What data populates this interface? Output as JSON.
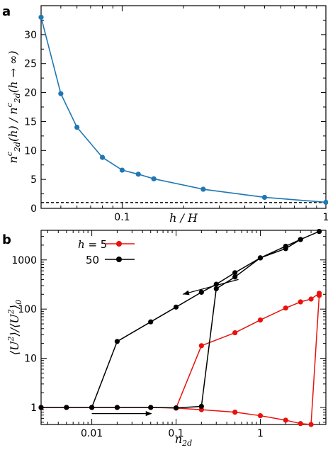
{
  "chart_data": [
    {
      "panel": "a",
      "type": "line",
      "xscale": "log",
      "xlim": [
        0.04,
        1
      ],
      "ylim": [
        0,
        35
      ],
      "xlabel": "h / H",
      "ylabel": "n^c_2d(h) / n^c_2d(h → ∞)",
      "xticks": [
        {
          "value": 0.1,
          "label": "0.1"
        },
        {
          "value": 1,
          "label": "1"
        }
      ],
      "yticks": [
        0,
        5,
        10,
        15,
        20,
        25,
        30
      ],
      "yticklabels": [
        "0",
        "5",
        "10",
        "15",
        "20",
        "25",
        "30"
      ],
      "reference_line": {
        "y": 1,
        "style": "dashed",
        "color": "#000000"
      },
      "series": [
        {
          "color": "#1f77b4",
          "x": [
            0.04,
            0.05,
            0.06,
            0.08,
            0.1,
            0.12,
            0.143,
            0.25,
            0.5,
            1.0
          ],
          "y": [
            33.0,
            19.8,
            14.0,
            8.8,
            6.6,
            5.9,
            5.1,
            3.3,
            1.9,
            1.05
          ]
        }
      ]
    },
    {
      "panel": "b",
      "type": "line",
      "xscale": "log",
      "yscale": "log",
      "xlim": [
        0.0025,
        6
      ],
      "ylim": [
        0.45,
        4000
      ],
      "xlabel": "n_2d",
      "ylabel": "⟨U²⟩/⟨U²⟩₀",
      "xticks": [
        {
          "value": 0.01,
          "label": "0.01"
        },
        {
          "value": 0.1,
          "label": "0.1"
        },
        {
          "value": 1,
          "label": "1"
        }
      ],
      "yticks": [
        {
          "value": 1,
          "label": "1"
        },
        {
          "value": 10,
          "label": "10"
        },
        {
          "value": 100,
          "label": "100"
        },
        {
          "value": 1000,
          "label": "1000"
        }
      ],
      "legend": {
        "position": "top-left",
        "title": "h = 5",
        "entries": [
          "5",
          "50"
        ]
      },
      "series": [
        {
          "name": "5",
          "color": "#e8120c",
          "x": [
            0.0025,
            0.005,
            0.01,
            0.02,
            0.05,
            0.1,
            0.2,
            0.5,
            1,
            2,
            3,
            4,
            5,
            5,
            4,
            3,
            2,
            1,
            0.5,
            0.2,
            0.1
          ],
          "y": [
            1.0,
            1.0,
            1.0,
            1.0,
            1.0,
            0.97,
            0.9,
            0.8,
            0.68,
            0.55,
            0.47,
            0.45,
            190,
            210,
            160,
            140,
            105,
            60,
            33,
            18,
            0.97
          ]
        },
        {
          "name": "50",
          "color": "#000000",
          "x": [
            0.0025,
            0.005,
            0.01,
            0.02,
            0.05,
            0.1,
            0.2,
            0.3,
            0.5,
            1,
            2,
            3,
            5,
            5,
            3,
            2,
            1,
            0.5,
            0.3,
            0.2,
            0.1,
            0.05,
            0.02,
            0.01
          ],
          "y": [
            1.0,
            1.0,
            1.0,
            1.0,
            1.0,
            0.98,
            1.05,
            260,
            450,
            1100,
            1700,
            2600,
            3800,
            3800,
            2600,
            1900,
            1100,
            550,
            320,
            220,
            110,
            55,
            22,
            1.0
          ]
        }
      ],
      "annotations": [
        {
          "type": "arrow",
          "direction": "left",
          "x0": 0.55,
          "x1": 0.12,
          "y0": 400,
          "y1": 200
        },
        {
          "type": "arrow",
          "direction": "right",
          "x0": 0.01,
          "x1": 0.05,
          "y": 0.75
        }
      ]
    }
  ],
  "labels": {
    "panel_a": "a",
    "panel_b": "b",
    "legend_h": "h",
    "legend_eq": " = 5",
    "legend_50": "50"
  }
}
